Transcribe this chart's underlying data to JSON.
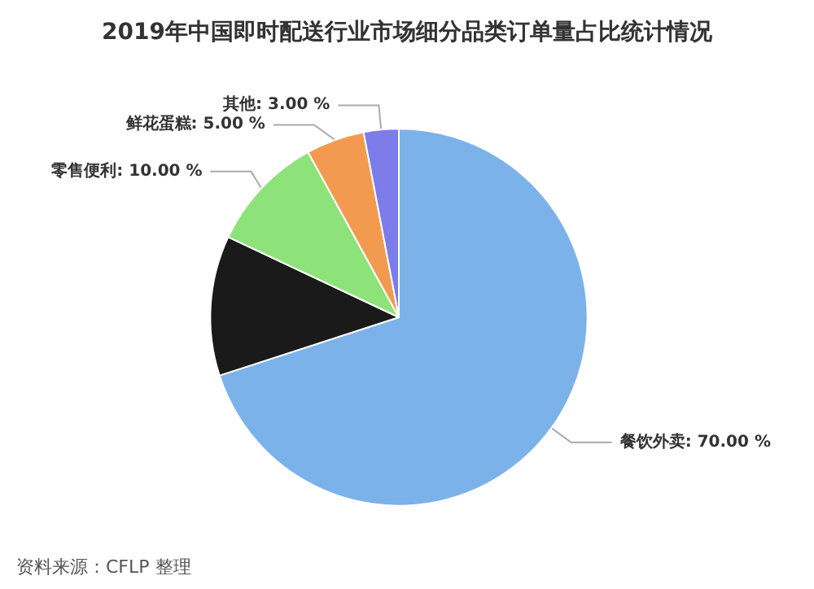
{
  "chart_data": {
    "type": "pie",
    "title": "2019年中国即时配送行业市场细分品类订单量占比统计情况",
    "categories": [
      "餐饮外卖",
      null,
      "零售便利",
      "鲜花蛋糕",
      "其他"
    ],
    "values": [
      70,
      12,
      10,
      5,
      3
    ],
    "value_labels": [
      "70.00 %",
      null,
      "10.00 %",
      "5.00 %",
      "3.00 %"
    ],
    "colors": [
      "#7cb2ea",
      "#1a1a1a",
      "#8ee27a",
      "#f29b50",
      "#7c7de9"
    ],
    "annotations": [
      "资料来源：CFLP 整理"
    ],
    "legend": false
  }
}
